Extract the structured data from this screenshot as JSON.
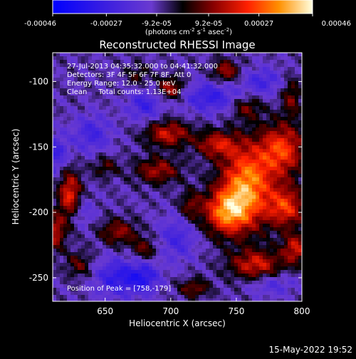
{
  "chart_data": {
    "type": "heatmap",
    "title": "Reconstructed RHESSI Image",
    "xlabel": "Heliocentric X (arcsec)",
    "ylabel": "Heliocentric Y (arcsec)",
    "xlim": [
      610,
      800
    ],
    "ylim": [
      -268,
      -78
    ],
    "xticks": [
      650,
      700,
      750,
      800
    ],
    "yticks": [
      -100,
      -150,
      -200,
      -250
    ],
    "colorbar": {
      "ticks": [
        -0.00046,
        -0.00027,
        -9.2e-05,
        9.2e-05,
        0.00027,
        0.00046
      ],
      "tick_labels": [
        "-0.00046",
        "-0.00027",
        "-9.2e-05",
        "9.2e-05",
        "0.00027",
        "0.00046"
      ],
      "range": [
        -0.00046,
        0.00046
      ],
      "unit_parts": [
        "(photons cm",
        "-2",
        " s",
        "-1",
        " asec",
        "-2",
        ")"
      ]
    },
    "annotations": [
      "27-Jul-2013 04:35:32.000 to 04:41:32.000",
      "Detectors: 3F 4F 5F 6F 7F 8F, Att 0",
      "Energy Range: 12.0 - 25.0 keV",
      "Clean     Total counts: 1.13E+04"
    ],
    "peak_label": "Position of Peak = [758,-179]",
    "peak_position": [
      758,
      -179
    ],
    "sources": [
      {
        "x": 758,
        "y": -179,
        "amp": 0.00042,
        "sx": 14,
        "sy": 22
      },
      {
        "x": 742,
        "y": -200,
        "amp": 0.00035,
        "sx": 12,
        "sy": 12
      },
      {
        "x": 785,
        "y": -152,
        "amp": 0.00032,
        "sx": 12,
        "sy": 14
      },
      {
        "x": 788,
        "y": -196,
        "amp": 0.0003,
        "sx": 10,
        "sy": 11
      },
      {
        "x": 698,
        "y": -140,
        "amp": 0.00026,
        "sx": 12,
        "sy": 7
      },
      {
        "x": 735,
        "y": -148,
        "amp": 0.00024,
        "sx": 11,
        "sy": 7
      },
      {
        "x": 623,
        "y": -188,
        "amp": 0.00032,
        "sx": 6,
        "sy": 14
      },
      {
        "x": 690,
        "y": -168,
        "amp": 0.00022,
        "sx": 12,
        "sy": 7
      },
      {
        "x": 700,
        "y": -105,
        "amp": 0.00023,
        "sx": 7,
        "sy": 6
      },
      {
        "x": 765,
        "y": -240,
        "amp": 0.00027,
        "sx": 14,
        "sy": 8
      },
      {
        "x": 795,
        "y": -228,
        "amp": 0.00026,
        "sx": 7,
        "sy": 8
      },
      {
        "x": 612,
        "y": -215,
        "amp": 0.00024,
        "sx": 5,
        "sy": 10
      },
      {
        "x": 660,
        "y": -215,
        "amp": 0.0002,
        "sx": 10,
        "sy": 7
      },
      {
        "x": 680,
        "y": -228,
        "amp": 0.00016,
        "sx": 7,
        "sy": 6
      },
      {
        "x": 742,
        "y": -92,
        "amp": 0.00022,
        "sx": 7,
        "sy": 6
      },
      {
        "x": 792,
        "y": -112,
        "amp": 0.00017,
        "sx": 5,
        "sy": 10
      },
      {
        "x": 758,
        "y": -120,
        "amp": 0.00016,
        "sx": 8,
        "sy": 6
      },
      {
        "x": 718,
        "y": -258,
        "amp": 0.00018,
        "sx": 8,
        "sy": 5
      },
      {
        "x": 630,
        "y": -240,
        "amp": 0.00015,
        "sx": 7,
        "sy": 7
      },
      {
        "x": 715,
        "y": -195,
        "amp": 0.00016,
        "sx": 6,
        "sy": 8
      },
      {
        "x": 675,
        "y": -95,
        "amp": 0.00012,
        "sx": 6,
        "sy": 6
      },
      {
        "x": 650,
        "y": -165,
        "amp": 0.00013,
        "sx": 7,
        "sy": 6
      },
      {
        "x": 660,
        "y": -250,
        "amp": -0.00022,
        "sx": 12,
        "sy": 10
      },
      {
        "x": 730,
        "y": -112,
        "amp": -0.0002,
        "sx": 14,
        "sy": 8
      },
      {
        "x": 680,
        "y": -118,
        "amp": -0.00018,
        "sx": 9,
        "sy": 8
      },
      {
        "x": 640,
        "y": -140,
        "amp": -0.00016,
        "sx": 10,
        "sy": 10
      },
      {
        "x": 612,
        "y": -155,
        "amp": -0.00018,
        "sx": 7,
        "sy": 10
      },
      {
        "x": 770,
        "y": -100,
        "amp": -0.00016,
        "sx": 10,
        "sy": 7
      },
      {
        "x": 705,
        "y": -220,
        "amp": -0.00015,
        "sx": 10,
        "sy": 12
      },
      {
        "x": 680,
        "y": -250,
        "amp": -0.0002,
        "sx": 8,
        "sy": 8
      },
      {
        "x": 630,
        "y": -200,
        "amp": -0.00012,
        "sx": 8,
        "sy": 8
      },
      {
        "x": 778,
        "y": -255,
        "amp": -0.00012,
        "sx": 12,
        "sy": 6
      }
    ]
  },
  "timestamp": "15-May-2022 19:52"
}
